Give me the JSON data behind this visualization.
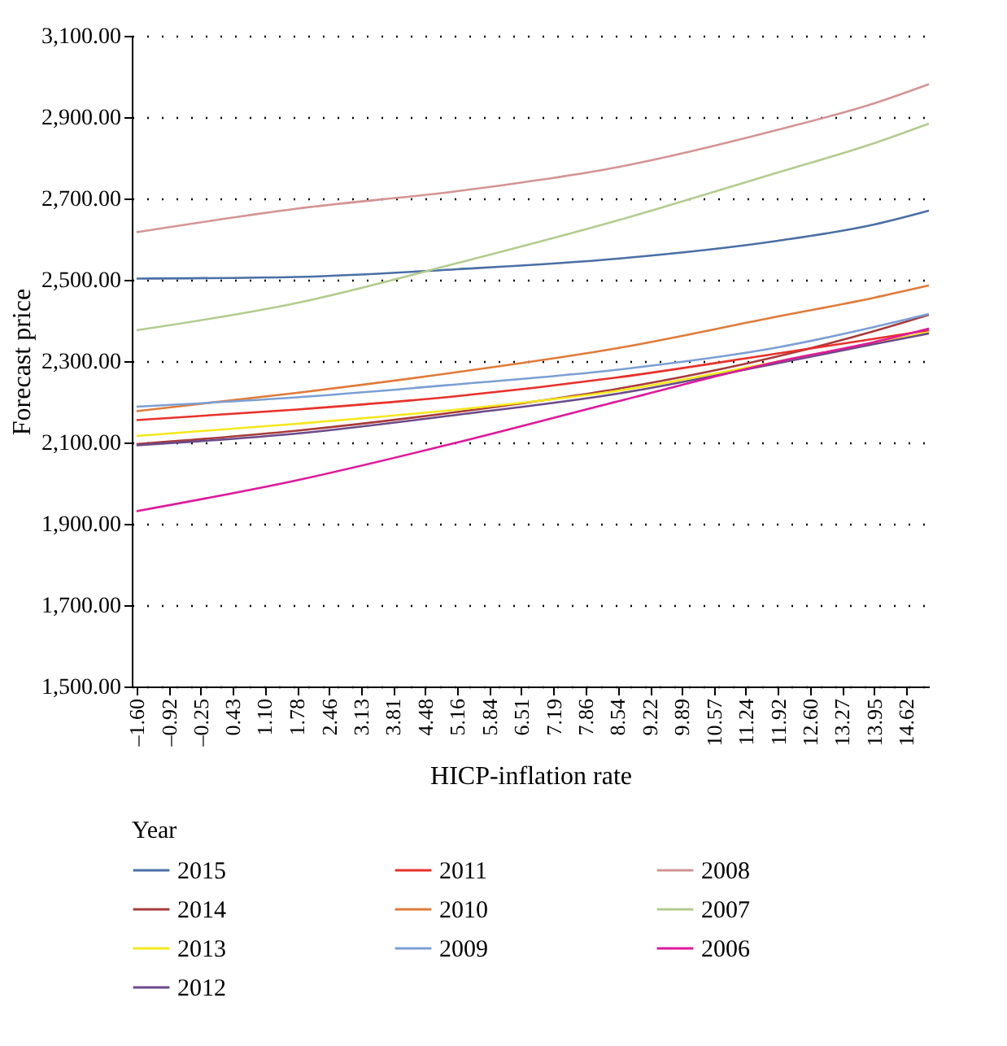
{
  "chart_data": {
    "type": "line",
    "xlabel": "HICP-inflation rate",
    "ylabel": "Forecast price",
    "legend_title": "Year",
    "legend": "bottom",
    "grid": "y",
    "line_style": "solid",
    "marker": "none",
    "x": [
      -1.6,
      1.78,
      5.16,
      8.54,
      11.92,
      13.95,
      15.1
    ],
    "xlim": [
      -1.7,
      15.1
    ],
    "xticks": [
      {
        "value": -1.6,
        "label": "–1.60"
      },
      {
        "value": -0.92,
        "label": "–0.92"
      },
      {
        "value": -0.25,
        "label": "–0.25"
      },
      {
        "value": 0.43,
        "label": "0.43"
      },
      {
        "value": 1.1,
        "label": "1.10"
      },
      {
        "value": 1.78,
        "label": "1.78"
      },
      {
        "value": 2.46,
        "label": "2.46"
      },
      {
        "value": 3.13,
        "label": "3.13"
      },
      {
        "value": 3.81,
        "label": "3.81"
      },
      {
        "value": 4.48,
        "label": "4.48"
      },
      {
        "value": 5.16,
        "label": "5.16"
      },
      {
        "value": 5.84,
        "label": "5.84"
      },
      {
        "value": 6.51,
        "label": "6.51"
      },
      {
        "value": 7.19,
        "label": "7.19"
      },
      {
        "value": 7.86,
        "label": "7.86"
      },
      {
        "value": 8.54,
        "label": "8.54"
      },
      {
        "value": 9.22,
        "label": "9.22"
      },
      {
        "value": 9.89,
        "label": "9.89"
      },
      {
        "value": 10.57,
        "label": "10.57"
      },
      {
        "value": 11.24,
        "label": "11.24"
      },
      {
        "value": 11.92,
        "label": "11.92"
      },
      {
        "value": 12.6,
        "label": "12.60"
      },
      {
        "value": 13.27,
        "label": "13.27"
      },
      {
        "value": 13.95,
        "label": "13.95"
      },
      {
        "value": 14.62,
        "label": "14.62"
      }
    ],
    "ylim": [
      1500,
      3100
    ],
    "yticks": [
      {
        "value": 1500,
        "label": "1,500.00"
      },
      {
        "value": 1700,
        "label": "1,700.00"
      },
      {
        "value": 1900,
        "label": "1,900.00"
      },
      {
        "value": 2100,
        "label": "2,100.00"
      },
      {
        "value": 2300,
        "label": "2,300.00"
      },
      {
        "value": 2500,
        "label": "2,500.00"
      },
      {
        "value": 2700,
        "label": "2,700.00"
      },
      {
        "value": 2900,
        "label": "2,900.00"
      },
      {
        "value": 3100,
        "label": "3,100.00"
      }
    ],
    "series": [
      {
        "name": "2015",
        "color": "#4a6fa5",
        "values": [
          2503,
          2507,
          2526,
          2552,
          2596,
          2636,
          2670
        ]
      },
      {
        "name": "2014",
        "color": "#a83a3a",
        "values": [
          2096,
          2129,
          2175,
          2232,
          2312,
          2374,
          2414
        ]
      },
      {
        "name": "2013",
        "color": "#f5e81a",
        "values": [
          2116,
          2146,
          2181,
          2227,
          2299,
          2345,
          2371
        ]
      },
      {
        "name": "2012",
        "color": "#6a4a8a",
        "values": [
          2093,
          2122,
          2168,
          2220,
          2295,
          2342,
          2368
        ]
      },
      {
        "name": "2011",
        "color": "#e8302a",
        "values": [
          2155,
          2181,
          2214,
          2260,
          2319,
          2355,
          2376
        ]
      },
      {
        "name": "2010",
        "color": "#e07b39",
        "values": [
          2177,
          2222,
          2273,
          2332,
          2410,
          2456,
          2486
        ]
      },
      {
        "name": "2009",
        "color": "#7b9fd4",
        "values": [
          2188,
          2211,
          2243,
          2279,
          2334,
          2384,
          2416
        ]
      },
      {
        "name": "2008",
        "color": "#d49494",
        "values": [
          2617,
          2675,
          2718,
          2777,
          2869,
          2934,
          2981
        ]
      },
      {
        "name": "2007",
        "color": "#b3cc8f",
        "values": [
          2376,
          2443,
          2541,
          2646,
          2764,
          2836,
          2884
        ]
      },
      {
        "name": "2006",
        "color": "#e0189a",
        "values": [
          1931,
          2007,
          2100,
          2201,
          2299,
          2347,
          2380
        ]
      }
    ]
  }
}
